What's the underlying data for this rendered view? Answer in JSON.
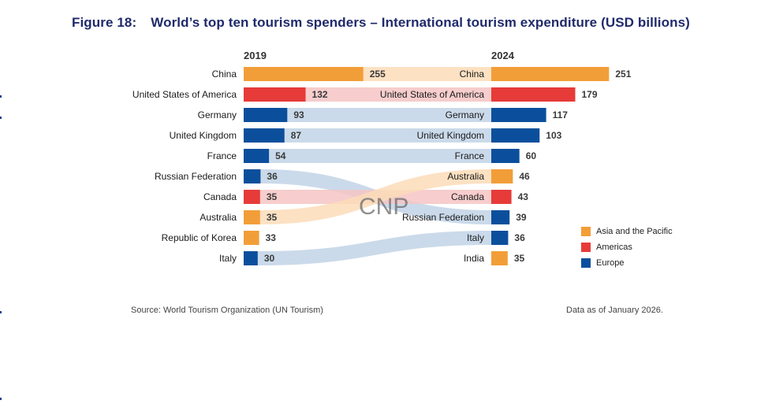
{
  "title": {
    "number": "Figure 18:",
    "text": "World’s top ten tourism spenders – International tourism expenditure (USD billions)"
  },
  "chart_data": {
    "type": "bar",
    "left_year": "2019",
    "right_year": "2024",
    "left": [
      {
        "country": "China",
        "value": 255,
        "region": "Asia and the Pacific"
      },
      {
        "country": "United States of America",
        "value": 132,
        "region": "Americas"
      },
      {
        "country": "Germany",
        "value": 93,
        "region": "Europe"
      },
      {
        "country": "United Kingdom",
        "value": 87,
        "region": "Europe"
      },
      {
        "country": "France",
        "value": 54,
        "region": "Europe"
      },
      {
        "country": "Russian Federation",
        "value": 36,
        "region": "Europe"
      },
      {
        "country": "Canada",
        "value": 35,
        "region": "Americas"
      },
      {
        "country": "Australia",
        "value": 35,
        "region": "Asia and the Pacific"
      },
      {
        "country": "Republic of Korea",
        "value": 33,
        "region": "Asia and the Pacific"
      },
      {
        "country": "Italy",
        "value": 30,
        "region": "Europe"
      }
    ],
    "right": [
      {
        "country": "China",
        "value": 251,
        "region": "Asia and the Pacific"
      },
      {
        "country": "United States of America",
        "value": 179,
        "region": "Americas"
      },
      {
        "country": "Germany",
        "value": 117,
        "region": "Europe"
      },
      {
        "country": "United Kingdom",
        "value": 103,
        "region": "Europe"
      },
      {
        "country": "France",
        "value": 60,
        "region": "Europe"
      },
      {
        "country": "Australia",
        "value": 46,
        "region": "Asia and the Pacific"
      },
      {
        "country": "Canada",
        "value": 43,
        "region": "Americas"
      },
      {
        "country": "Russian Federation",
        "value": 39,
        "region": "Europe"
      },
      {
        "country": "Italy",
        "value": 36,
        "region": "Europe"
      },
      {
        "country": "India",
        "value": 35,
        "region": "Asia and the Pacific"
      }
    ],
    "legend": [
      {
        "name": "Asia and the Pacific",
        "color": "#f29e38"
      },
      {
        "name": "Americas",
        "color": "#e63b39"
      },
      {
        "name": "Europe",
        "color": "#0b4f9c"
      }
    ],
    "legend_placement": "right"
  },
  "footer": {
    "source": "Source: World Tourism Organization (UN Tourism)",
    "data_as_of": "Data as of January 2026."
  },
  "watermark": "CNP"
}
